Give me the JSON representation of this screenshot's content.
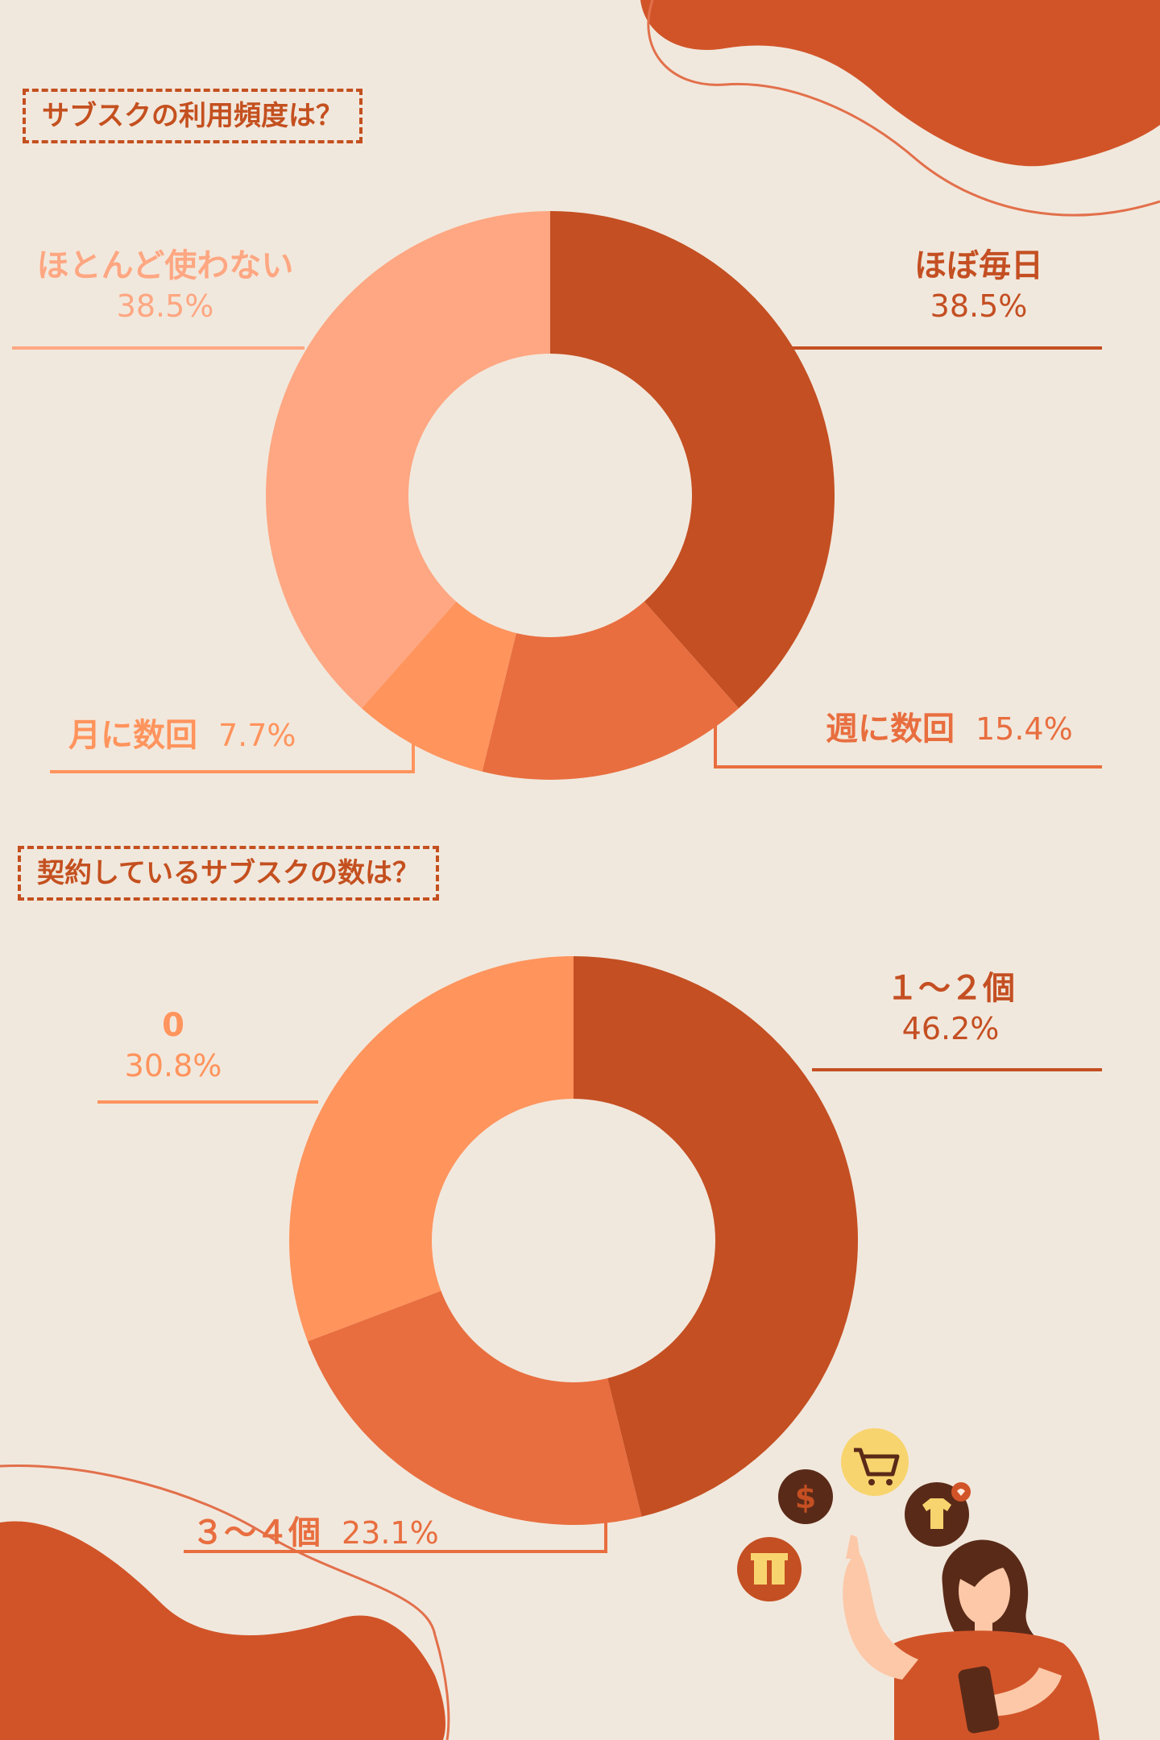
{
  "colors": {
    "background": "#f1e8dd",
    "accent": "#c4501f",
    "dark": "#c44f22",
    "mid": "#e86e3f",
    "light": "#ff945d",
    "pale": "#fea782"
  },
  "sections": [
    {
      "title": "サブスクの利用頻度は？"
    },
    {
      "title": "契約しているサブスクの数は？"
    }
  ],
  "chart_data": [
    {
      "type": "pie",
      "style": "donut",
      "title": "サブスクの利用頻度は？",
      "slices": [
        {
          "label": "ほぼ毎日",
          "value": 38.5,
          "value_label": "38.5%",
          "color": "#c44f22"
        },
        {
          "label": "週に数回",
          "value": 15.4,
          "value_label": "15.4%",
          "color": "#e86e3f"
        },
        {
          "label": "月に数回",
          "value": 7.7,
          "value_label": "7.7%",
          "color": "#ff945d"
        },
        {
          "label": "ほとんど使わない",
          "value": 38.5,
          "value_label": "38.5%",
          "color": "#fea782"
        }
      ]
    },
    {
      "type": "pie",
      "style": "donut",
      "title": "契約しているサブスクの数は？",
      "slices": [
        {
          "label": "１～２個",
          "value": 46.2,
          "value_label": "46.2%",
          "color": "#c44f22"
        },
        {
          "label": "３～４個",
          "value": 23.1,
          "value_label": "23.1%",
          "color": "#e86e3f"
        },
        {
          "label": "0",
          "value": 30.8,
          "value_label": "30.8%",
          "color": "#ff945d"
        }
      ]
    }
  ],
  "icons": [
    "shopping-cart-icon",
    "dollar-coin-icon",
    "tshirt-heart-icon",
    "gift-icon"
  ]
}
